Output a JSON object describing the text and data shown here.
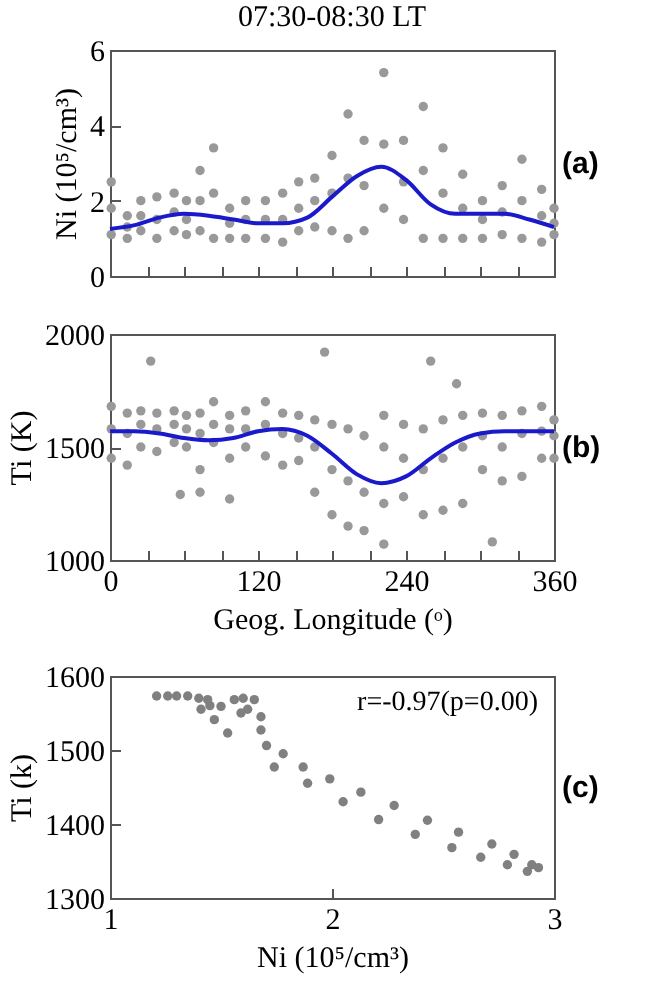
{
  "chart_data": [
    {
      "type": "scatter",
      "title": "07:30-08:30 LT",
      "ylabel": "Ni (10⁵/cm³)",
      "annotations": [
        "(a)"
      ],
      "tick_labels": "y",
      "xlim": [
        0,
        360
      ],
      "xticks": [
        0,
        {
          "value": 30,
          "label": null
        },
        {
          "value": 60,
          "label": null
        },
        {
          "value": 90,
          "label": null
        },
        120,
        {
          "value": 150,
          "label": null
        },
        {
          "value": 180,
          "label": null
        },
        {
          "value": 210,
          "label": null
        },
        240,
        {
          "value": 270,
          "label": null
        },
        {
          "value": 300,
          "label": null
        },
        {
          "value": 330,
          "label": null
        },
        360
      ],
      "ylim": [
        0,
        6
      ],
      "yticks": [
        0,
        2,
        4,
        6
      ],
      "series": [
        {
          "type": "scatter",
          "marker": "circle",
          "color": "#999999",
          "x": [
            1,
            1,
            1,
            14,
            14,
            14,
            25,
            25,
            25,
            38,
            38,
            38,
            52,
            52,
            52,
            62,
            62,
            62,
            73,
            73,
            73,
            84,
            84,
            84,
            97,
            97,
            97,
            110,
            110,
            110,
            126,
            126,
            126,
            140,
            140,
            140,
            153,
            153,
            153,
            166,
            166,
            166,
            180,
            180,
            180,
            193,
            193,
            193,
            206,
            206,
            206,
            222,
            222,
            222,
            238,
            238,
            238,
            254,
            254,
            254,
            270,
            270,
            270,
            286,
            286,
            286,
            302,
            302,
            302,
            318,
            318,
            318,
            334,
            334,
            334,
            350,
            350,
            350,
            360,
            360,
            360
          ],
          "values": [
            1.1,
            1.8,
            2.5,
            1.0,
            1.3,
            1.6,
            1.2,
            1.6,
            2.0,
            1.0,
            1.5,
            2.1,
            1.2,
            1.7,
            2.2,
            1.1,
            1.5,
            2.0,
            1.2,
            2.0,
            2.8,
            1.0,
            2.2,
            3.4,
            1.0,
            1.4,
            1.8,
            1.0,
            1.5,
            2.0,
            1.0,
            1.5,
            2.0,
            0.9,
            1.5,
            2.2,
            1.2,
            1.8,
            2.5,
            1.3,
            2.0,
            2.6,
            1.2,
            2.2,
            3.2,
            1.0,
            2.6,
            4.3,
            1.2,
            2.4,
            3.6,
            1.8,
            3.5,
            5.4,
            1.5,
            2.5,
            3.6,
            1.0,
            2.8,
            4.5,
            1.0,
            2.2,
            3.4,
            1.0,
            1.8,
            2.7,
            1.0,
            1.5,
            2.0,
            1.1,
            1.7,
            2.4,
            1.0,
            2.0,
            3.1,
            0.9,
            1.6,
            2.3,
            1.1,
            1.4,
            1.8
          ]
        },
        {
          "type": "line",
          "color": "#1a1acc",
          "x": [
            0,
            20,
            40,
            60,
            80,
            100,
            120,
            140,
            160,
            180,
            200,
            220,
            240,
            260,
            280,
            300,
            320,
            340,
            360
          ],
          "values": [
            1.25,
            1.35,
            1.55,
            1.65,
            1.6,
            1.5,
            1.4,
            1.4,
            1.55,
            2.1,
            2.65,
            2.9,
            2.55,
            1.9,
            1.65,
            1.65,
            1.65,
            1.5,
            1.3
          ]
        }
      ]
    },
    {
      "type": "scatter",
      "xlabel": "Geog. Longitude (ᵒ)",
      "ylabel": "Ti (K)",
      "annotations": [
        "(b)"
      ],
      "xlim": [
        0,
        360
      ],
      "xticks": [
        0,
        {
          "value": 30,
          "label": null
        },
        {
          "value": 60,
          "label": null
        },
        {
          "value": 90,
          "label": null
        },
        120,
        {
          "value": 150,
          "label": null
        },
        {
          "value": 180,
          "label": null
        },
        {
          "value": 210,
          "label": null
        },
        240,
        {
          "value": 270,
          "label": null
        },
        {
          "value": 300,
          "label": null
        },
        {
          "value": 330,
          "label": null
        },
        360
      ],
      "ylim": [
        1000,
        2000
      ],
      "yticks": [
        1000,
        1500,
        2000
      ],
      "series": [
        {
          "type": "scatter",
          "marker": "circle",
          "color": "#999999",
          "x": [
            1,
            1,
            1,
            14,
            14,
            14,
            25,
            25,
            25,
            33,
            38,
            38,
            38,
            52,
            52,
            52,
            57,
            62,
            62,
            62,
            73,
            73,
            73,
            73,
            84,
            84,
            84,
            97,
            97,
            97,
            97,
            110,
            110,
            110,
            126,
            126,
            126,
            140,
            140,
            140,
            153,
            153,
            153,
            166,
            166,
            166,
            174,
            180,
            180,
            180,
            193,
            193,
            193,
            206,
            206,
            206,
            222,
            222,
            222,
            222,
            238,
            238,
            238,
            254,
            254,
            254,
            260,
            270,
            270,
            270,
            281,
            286,
            286,
            286,
            302,
            302,
            302,
            310,
            318,
            318,
            318,
            334,
            334,
            334,
            350,
            350,
            350,
            360,
            360,
            360
          ],
          "values": [
            1450,
            1580,
            1680,
            1420,
            1560,
            1650,
            1500,
            1600,
            1660,
            1880,
            1480,
            1580,
            1650,
            1520,
            1600,
            1660,
            1290,
            1500,
            1580,
            1640,
            1300,
            1400,
            1560,
            1650,
            1520,
            1600,
            1700,
            1270,
            1450,
            1580,
            1640,
            1500,
            1580,
            1660,
            1460,
            1600,
            1700,
            1420,
            1560,
            1650,
            1440,
            1540,
            1640,
            1300,
            1500,
            1620,
            1920,
            1200,
            1400,
            1600,
            1150,
            1350,
            1580,
            1130,
            1300,
            1550,
            1070,
            1250,
            1500,
            1640,
            1280,
            1450,
            1600,
            1200,
            1400,
            1580,
            1880,
            1220,
            1450,
            1620,
            1780,
            1250,
            1500,
            1640,
            1400,
            1550,
            1650,
            1080,
            1350,
            1500,
            1640,
            1370,
            1560,
            1660,
            1450,
            1570,
            1680,
            1450,
            1550,
            1620
          ]
        },
        {
          "type": "line",
          "color": "#1a1acc",
          "x": [
            0,
            20,
            40,
            60,
            80,
            100,
            120,
            140,
            160,
            180,
            200,
            220,
            240,
            260,
            280,
            300,
            320,
            340,
            360
          ],
          "values": [
            1570,
            1570,
            1560,
            1540,
            1530,
            1540,
            1570,
            1580,
            1550,
            1470,
            1380,
            1340,
            1370,
            1450,
            1520,
            1560,
            1570,
            1570,
            1570
          ]
        }
      ]
    },
    {
      "type": "scatter",
      "xlabel": "Ni (10⁵/cm³)",
      "ylabel": "Ti (k)",
      "annotations": [
        "r=-0.97(p=0.00)",
        "(c)"
      ],
      "xlim": [
        1,
        3
      ],
      "xticks": [
        1,
        2,
        3
      ],
      "ylim": [
        1300,
        1600
      ],
      "yticks": [
        1300,
        1400,
        1500,
        1600
      ],
      "series": [
        {
          "type": "scatter",
          "marker": "circle",
          "color": "#808080",
          "x": [
            1.21,
            1.26,
            1.3,
            1.35,
            1.4,
            1.44,
            1.5,
            1.56,
            1.6,
            1.65,
            1.68,
            1.53,
            1.47,
            1.59,
            1.41,
            1.68,
            1.45,
            1.62,
            1.705,
            1.78,
            1.74,
            1.87,
            1.89,
            1.99,
            2.05,
            2.13,
            2.21,
            2.28,
            2.375,
            2.43,
            2.54,
            2.57,
            2.67,
            2.72,
            2.79,
            2.82,
            2.88,
            2.9,
            2.93
          ],
          "values": [
            1573,
            1573,
            1573,
            1573,
            1570,
            1568,
            1559,
            1568,
            1570,
            1568,
            1545,
            1523,
            1541,
            1550,
            1555,
            1527,
            1560,
            1555,
            1506,
            1495,
            1477,
            1477,
            1455,
            1461,
            1430,
            1443,
            1406,
            1425,
            1386,
            1405,
            1368,
            1389,
            1355,
            1373,
            1345,
            1359,
            1336,
            1345,
            1341
          ]
        }
      ]
    }
  ]
}
